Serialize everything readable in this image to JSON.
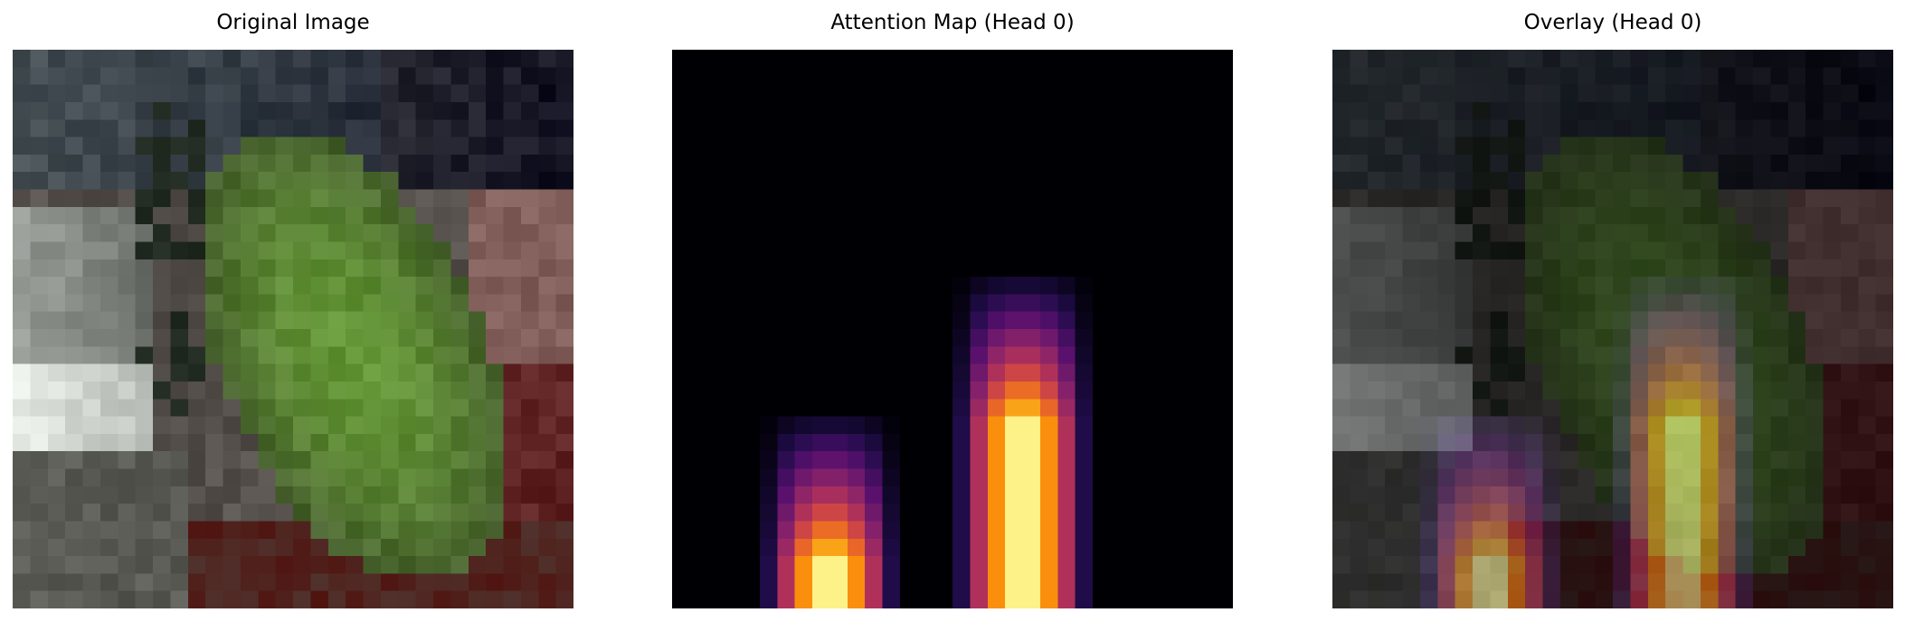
{
  "panels": [
    {
      "title": "Original Image"
    },
    {
      "title": "Attention Map (Head 0)"
    },
    {
      "title": "Overlay (Head 0)"
    }
  ],
  "image": {
    "grid": 32,
    "colormap": "inferno",
    "overlay_alpha": 0.5
  }
}
